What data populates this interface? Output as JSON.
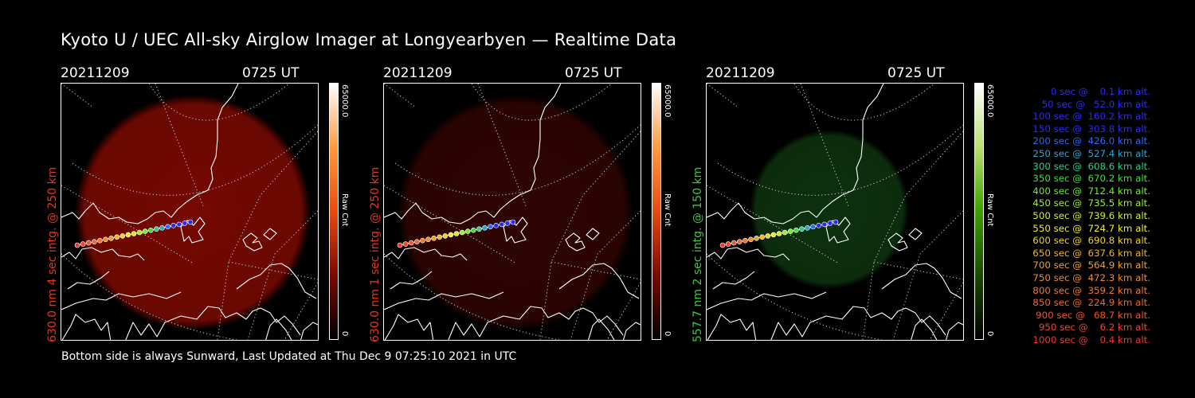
{
  "title": "Kyoto U / UEC All-sky Airglow Imager at Longyearbyen — Realtime Data",
  "footer": "Bottom side is always Sunward, Last Updated at Thu Dec  9 07:25:10 2021 in UTC",
  "colors": {
    "red": "#e8361a",
    "green": "#3fc83f",
    "background": "#000000"
  },
  "panels": [
    {
      "date": "20211209",
      "time": "0725 UT",
      "label": "630.0 nm 4 sec intg. @ 250 km",
      "label_color": "#e8361a",
      "colorbar": {
        "max": "65000.0",
        "unit": "Raw Cnt",
        "min": "0",
        "gradient": [
          "#000000",
          "#7a0a00",
          "#e84a10",
          "#ff9a40",
          "#ffffff"
        ]
      },
      "glow": {
        "color": "#8a0a02",
        "intensity": 0.85
      }
    },
    {
      "date": "20211209",
      "time": "0725 UT",
      "label": "630.0 nm 1 sec intg. @ 250 km",
      "label_color": "#e8361a",
      "colorbar": {
        "max": "65000.0",
        "unit": "Raw Cnt",
        "min": "0",
        "gradient": [
          "#000000",
          "#7a0a00",
          "#e84a10",
          "#ff9a40",
          "#ffffff"
        ]
      },
      "glow": {
        "color": "#3a0602",
        "intensity": 0.8
      }
    },
    {
      "date": "20211209",
      "time": "0725 UT",
      "label": "557.7 nm 2 sec intg. @ 150 km",
      "label_color": "#3fc83f",
      "colorbar": {
        "max": "65000.0",
        "unit": "Raw Cnt",
        "min": "0",
        "gradient": [
          "#000000",
          "#1a4a00",
          "#3ea000",
          "#b8e070",
          "#ffffff"
        ]
      },
      "glow": {
        "color": "#0f3a10",
        "intensity": 0.85
      }
    }
  ],
  "trajectory_legend": [
    {
      "text": "   0 sec @    0.1 km alt.",
      "color": "#2a2aff"
    },
    {
      "text": "  50 sec @   52.0 km alt.",
      "color": "#2a2aff"
    },
    {
      "text": " 100 sec @  160.2 km alt.",
      "color": "#2a2aff"
    },
    {
      "text": " 150 sec @  303.8 km alt.",
      "color": "#2a2aff"
    },
    {
      "text": " 200 sec @  426.0 km alt.",
      "color": "#2a6aff"
    },
    {
      "text": " 250 sec @  527.4 km alt.",
      "color": "#2aa8d8"
    },
    {
      "text": " 300 sec @  608.6 km alt.",
      "color": "#2ad08a"
    },
    {
      "text": " 350 sec @  670.2 km alt.",
      "color": "#3ce03c"
    },
    {
      "text": " 400 sec @  712.4 km alt.",
      "color": "#6cf02a"
    },
    {
      "text": " 450 sec @  735.5 km alt.",
      "color": "#9af02a"
    },
    {
      "text": " 500 sec @  739.6 km alt.",
      "color": "#d2f02a"
    },
    {
      "text": " 550 sec @  724.7 km alt.",
      "color": "#f0f02a"
    },
    {
      "text": " 600 sec @  690.8 km alt.",
      "color": "#f0d22a"
    },
    {
      "text": " 650 sec @  637.6 km alt.",
      "color": "#f0b42a"
    },
    {
      "text": " 700 sec @  564.9 km alt.",
      "color": "#f0a02a"
    },
    {
      "text": " 750 sec @  472.3 km alt.",
      "color": "#f08c2a"
    },
    {
      "text": " 800 sec @  359.2 km alt.",
      "color": "#f07a2a"
    },
    {
      "text": " 850 sec @  224.9 km alt.",
      "color": "#f0682a"
    },
    {
      "text": " 900 sec @   68.7 km alt.",
      "color": "#f0562a"
    },
    {
      "text": " 950 sec @    6.2 km alt.",
      "color": "#f0462a"
    },
    {
      "text": "1000 sec @    0.4 km alt.",
      "color": "#f0362a"
    }
  ]
}
